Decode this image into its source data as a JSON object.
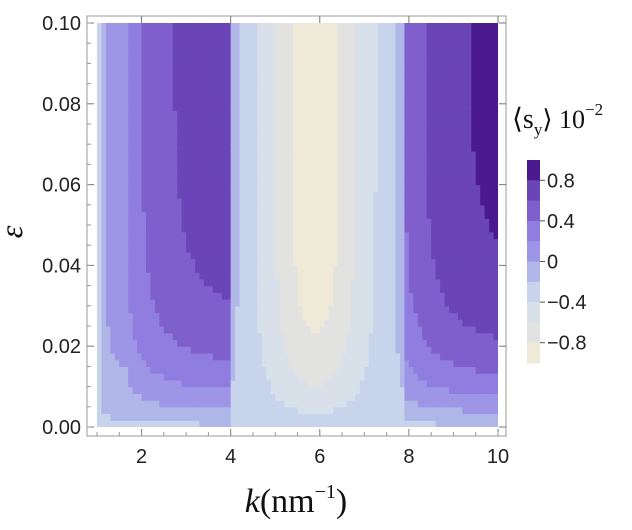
{
  "chart_data": {
    "type": "heatmap",
    "xlabel": "k",
    "xlabel_unit": "(nm",
    "xlabel_exp": "−1",
    "xlabel_close": ")",
    "ylabel": "ε",
    "xlim": [
      1,
      10
    ],
    "ylim": [
      0,
      0.1
    ],
    "x_ticks": [
      "2",
      "4",
      "6",
      "8",
      "10"
    ],
    "x_tick_values": [
      2,
      4,
      6,
      8,
      10
    ],
    "y_ticks": [
      "0.00",
      "0.02",
      "0.04",
      "0.06",
      "0.08",
      "0.10"
    ],
    "y_tick_values": [
      0,
      0.02,
      0.04,
      0.06,
      0.08,
      0.1
    ],
    "colorbar": {
      "title": "⟨s",
      "title_sub": "y",
      "title_close": "⟩ 10",
      "title_exp": "−2",
      "tick_labels": [
        "0.8",
        "0.4",
        "0",
        "−0.4",
        "−0.8"
      ],
      "tick_values": [
        0.8,
        0.4,
        0,
        -0.4,
        -0.8
      ],
      "range": [
        -1.0,
        1.0
      ],
      "levels": [
        {
          "from": 0.8,
          "to": 1.0,
          "color": "#4b1a8e"
        },
        {
          "from": 0.6,
          "to": 0.8,
          "color": "#6a45b7"
        },
        {
          "from": 0.4,
          "to": 0.6,
          "color": "#7e5fcc"
        },
        {
          "from": 0.2,
          "to": 0.4,
          "color": "#8f7ddf"
        },
        {
          "from": 0.0,
          "to": 0.2,
          "color": "#9d95e5"
        },
        {
          "from": -0.2,
          "to": 0.0,
          "color": "#b0b7e8"
        },
        {
          "from": -0.4,
          "to": -0.2,
          "color": "#c7d4ec"
        },
        {
          "from": -0.6,
          "to": -0.4,
          "color": "#d8e0ea"
        },
        {
          "from": -0.8,
          "to": -0.6,
          "color": "#e2e3e0"
        },
        {
          "from": -1.0,
          "to": -0.8,
          "color": "#efe9d8"
        }
      ]
    },
    "grid": false
  }
}
